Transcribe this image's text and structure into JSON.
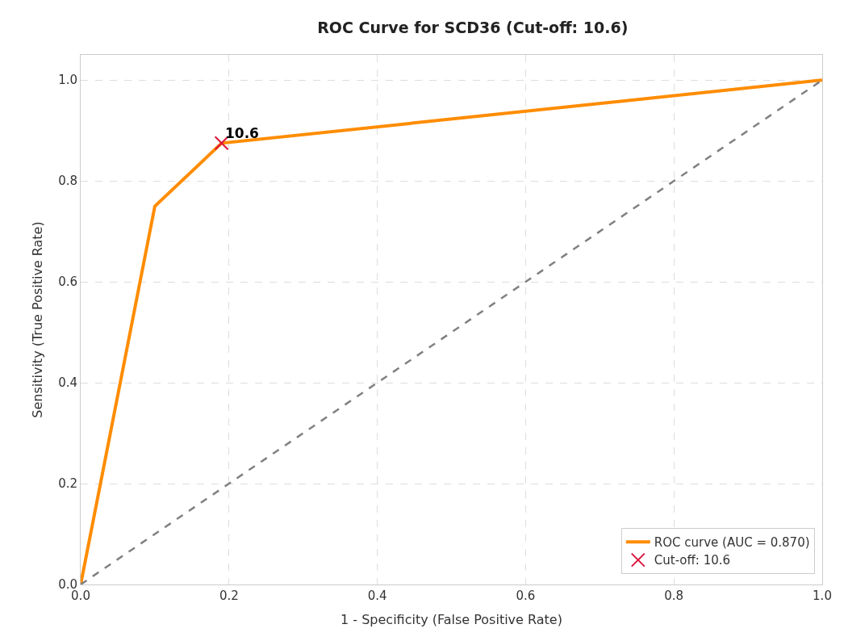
{
  "chart_data": {
    "type": "line",
    "title": "ROC Curve for SCD36 (Cut-off: 10.6)",
    "xlabel": "1 - Specificity (False Positive Rate)",
    "ylabel": "Sensitivity (True Positive Rate)",
    "series": [
      {
        "name": "ROC curve (AUC = 0.870)",
        "color": "#ff8c00",
        "x": [
          0,
          0.1,
          0.19,
          1
        ],
        "values": [
          0,
          0.75,
          0.875,
          1
        ]
      },
      {
        "color": "#808080",
        "line_style": "dashed",
        "x": [
          0,
          1
        ],
        "values": [
          0,
          1
        ]
      },
      {
        "name": "Cut-off: 10.6",
        "type": "scatter",
        "marker": "cross",
        "color": "#dc143c",
        "x": [
          0.19
        ],
        "values": [
          0.875
        ]
      }
    ],
    "annotations": [
      {
        "text": "10.6",
        "x": 0.19,
        "y": 0.875
      }
    ],
    "xlim": [
      0,
      1
    ],
    "ylim": [
      0,
      1.05
    ],
    "xticks": [
      {
        "value": 0,
        "label": "0.0"
      },
      0.2,
      0.4,
      0.6,
      0.8,
      {
        "value": 1,
        "label": "1.0"
      }
    ],
    "yticks": [
      {
        "value": 0,
        "label": "0.0"
      },
      0.2,
      0.4,
      0.6,
      0.8,
      {
        "value": 1,
        "label": "1.0"
      }
    ],
    "grid": true,
    "legend": "bottom right"
  }
}
